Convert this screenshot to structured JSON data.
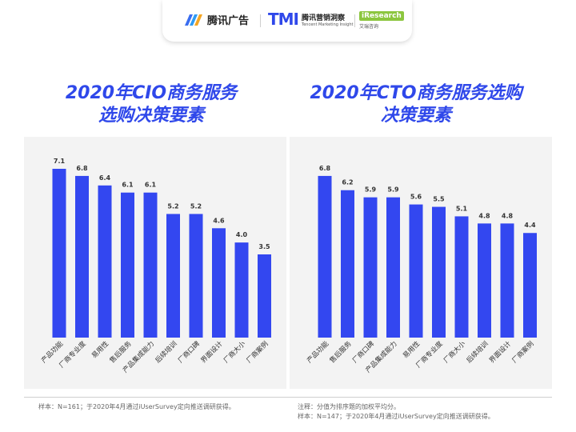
{
  "header": {
    "logo1_text": "腾讯广告",
    "logo2_mark": "TMI",
    "logo2_text": "腾讯营销洞察",
    "logo2_sub": "Tencent Marketing Insight",
    "logo3_text": "iResearch",
    "logo3_sub": "艾瑞咨询"
  },
  "colors": {
    "bar": "#3347f0",
    "title": "#2f48ea"
  },
  "chart_data": [
    {
      "type": "bar",
      "title_line1": "2020年CIO商务服务",
      "title_line2": "选购决策要素",
      "categories": [
        "产品功能",
        "厂商专业度",
        "易用性",
        "售后服务",
        "产品集成能力",
        "后续培训",
        "厂商口碑",
        "界面设计",
        "厂商大小",
        "厂商案例"
      ],
      "values": [
        7.1,
        6.8,
        6.4,
        6.1,
        6.1,
        5.2,
        5.2,
        4.6,
        4.0,
        3.5
      ],
      "value_labels": [
        "7.1",
        "6.8",
        "6.4",
        "6.1",
        "6.1",
        "5.2",
        "5.2",
        "4.6",
        "4.0",
        "3.5"
      ],
      "ylim": [
        0,
        7.1
      ]
    },
    {
      "type": "bar",
      "title_line1": "2020年CTO商务服务选购",
      "title_line2": "决策要素",
      "categories": [
        "产品功能",
        "售后服务",
        "厂商口碑",
        "产品集成能力",
        "易用性",
        "厂商专业度",
        "厂商大小",
        "后续培训",
        "界面设计",
        "厂商案例"
      ],
      "values": [
        6.8,
        6.2,
        5.9,
        5.9,
        5.6,
        5.5,
        5.1,
        4.8,
        4.8,
        4.4
      ],
      "value_labels": [
        "6.8",
        "6.2",
        "5.9",
        "5.9",
        "5.6",
        "5.5",
        "5.1",
        "4.8",
        "4.8",
        "4.4"
      ],
      "ylim": [
        0,
        7.1
      ]
    }
  ],
  "footnotes": {
    "left_sample": "样本：N=161；于2020年4月通过iUserSurvey定向推送调研获得。",
    "right_note": "注释：分值为排序题的加权平均分。",
    "right_sample": "样本：N=147；于2020年4月通过iUserSurvey定向推送调研获得。"
  }
}
